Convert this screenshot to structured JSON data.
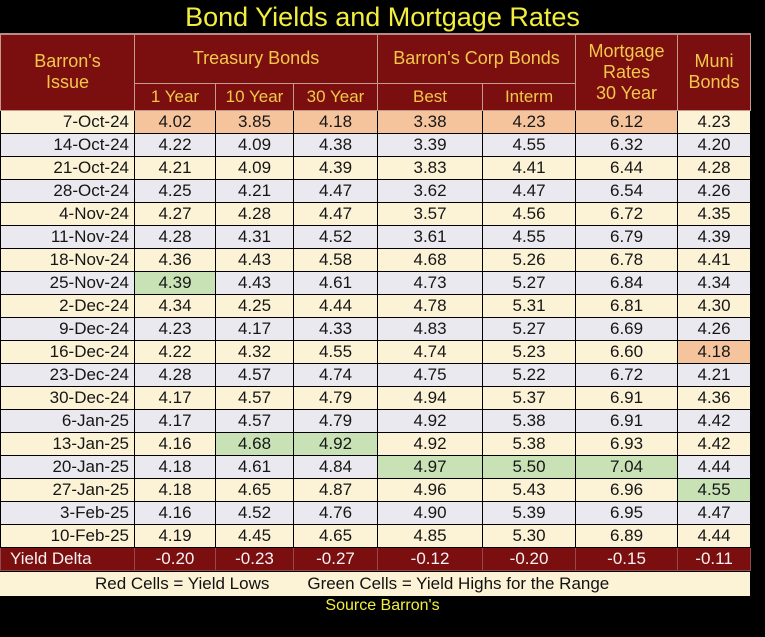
{
  "title": "Bond Yields and Mortgage Rates",
  "header": {
    "issue": "Barron's\nIssue",
    "treasury_group": "Treasury Bonds",
    "corp_group": "Barron's Corp Bonds",
    "mortgage": "Mortgage\nRates\n30 Year",
    "muni": "Muni\nBonds",
    "sub": [
      "1 Year",
      "10 Year",
      "30 Year",
      "Best",
      "Interm"
    ]
  },
  "delta": {
    "label": "Yield Delta"
  },
  "legend": {
    "red": "Red Cells = Yield Lows",
    "green": "Green Cells = Yield Highs for the Range"
  },
  "source": "Source Barron's",
  "colors": {
    "header_bg": "#7b0f10",
    "header_text": "#f3c84a",
    "title_text": "#f1ee3e",
    "row_cream": "#fcf3d6",
    "row_gray": "#e9e9ef",
    "yield_low_cell": "#f5c49d",
    "yield_high_cell": "#c8e2b6",
    "delta_text": "#f7f2f2",
    "page_bg": "#000000"
  },
  "chart_data": {
    "type": "table",
    "title": "Bond Yields and Mortgage Rates",
    "column_groups": [
      {
        "label": "Treasury Bonds",
        "span": 3
      },
      {
        "label": "Barron's Corp Bonds",
        "span": 2
      }
    ],
    "columns": [
      "Barron's Issue",
      "1 Year",
      "10 Year",
      "30 Year",
      "Best",
      "Interm",
      "Mortgage Rates 30 Year",
      "Muni Bonds"
    ],
    "rows": [
      {
        "date": "7-Oct-24",
        "values": [
          "4.02",
          "3.85",
          "4.18",
          "3.38",
          "4.23",
          "6.12",
          "4.23"
        ],
        "hl": {
          "0": "low",
          "1": "low",
          "2": "low",
          "3": "low",
          "4": "low",
          "5": "low"
        }
      },
      {
        "date": "14-Oct-24",
        "values": [
          "4.22",
          "4.09",
          "4.38",
          "3.39",
          "4.55",
          "6.32",
          "4.20"
        ]
      },
      {
        "date": "21-Oct-24",
        "values": [
          "4.21",
          "4.09",
          "4.39",
          "3.83",
          "4.41",
          "6.44",
          "4.28"
        ]
      },
      {
        "date": "28-Oct-24",
        "values": [
          "4.25",
          "4.21",
          "4.47",
          "3.62",
          "4.47",
          "6.54",
          "4.26"
        ]
      },
      {
        "date": "4-Nov-24",
        "values": [
          "4.27",
          "4.28",
          "4.47",
          "3.57",
          "4.56",
          "6.72",
          "4.35"
        ]
      },
      {
        "date": "11-Nov-24",
        "values": [
          "4.28",
          "4.31",
          "4.52",
          "3.61",
          "4.55",
          "6.79",
          "4.39"
        ]
      },
      {
        "date": "18-Nov-24",
        "values": [
          "4.36",
          "4.43",
          "4.58",
          "4.68",
          "5.26",
          "6.78",
          "4.41"
        ]
      },
      {
        "date": "25-Nov-24",
        "values": [
          "4.39",
          "4.43",
          "4.61",
          "4.73",
          "5.27",
          "6.84",
          "4.34"
        ],
        "hl": {
          "0": "high"
        }
      },
      {
        "date": "2-Dec-24",
        "values": [
          "4.34",
          "4.25",
          "4.44",
          "4.78",
          "5.31",
          "6.81",
          "4.30"
        ]
      },
      {
        "date": "9-Dec-24",
        "values": [
          "4.23",
          "4.17",
          "4.33",
          "4.83",
          "5.27",
          "6.69",
          "4.26"
        ]
      },
      {
        "date": "16-Dec-24",
        "values": [
          "4.22",
          "4.32",
          "4.55",
          "4.74",
          "5.23",
          "6.60",
          "4.18"
        ],
        "hl": {
          "6": "low"
        }
      },
      {
        "date": "23-Dec-24",
        "values": [
          "4.28",
          "4.57",
          "4.74",
          "4.75",
          "5.22",
          "6.72",
          "4.21"
        ]
      },
      {
        "date": "30-Dec-24",
        "values": [
          "4.17",
          "4.57",
          "4.79",
          "4.94",
          "5.37",
          "6.91",
          "4.36"
        ]
      },
      {
        "date": "6-Jan-25",
        "values": [
          "4.17",
          "4.57",
          "4.79",
          "4.92",
          "5.38",
          "6.91",
          "4.42"
        ]
      },
      {
        "date": "13-Jan-25",
        "values": [
          "4.16",
          "4.68",
          "4.92",
          "4.92",
          "5.38",
          "6.93",
          "4.42"
        ],
        "hl": {
          "1": "high",
          "2": "high"
        }
      },
      {
        "date": "20-Jan-25",
        "values": [
          "4.18",
          "4.61",
          "4.84",
          "4.97",
          "5.50",
          "7.04",
          "4.44"
        ],
        "hl": {
          "3": "high",
          "4": "high",
          "5": "high"
        }
      },
      {
        "date": "27-Jan-25",
        "values": [
          "4.18",
          "4.65",
          "4.87",
          "4.96",
          "5.43",
          "6.96",
          "4.55"
        ],
        "hl": {
          "6": "high"
        }
      },
      {
        "date": "3-Feb-25",
        "values": [
          "4.16",
          "4.52",
          "4.76",
          "4.90",
          "5.39",
          "6.95",
          "4.47"
        ]
      },
      {
        "date": "10-Feb-25",
        "values": [
          "4.19",
          "4.45",
          "4.65",
          "4.85",
          "5.30",
          "6.89",
          "4.44"
        ]
      }
    ],
    "yield_delta": [
      "-0.20",
      "-0.23",
      "-0.27",
      "-0.12",
      "-0.20",
      "-0.15",
      "-0.11"
    ],
    "notes": [
      "Red Cells = Yield Lows",
      "Green Cells = Yield Highs for the Range",
      "Source Barron's"
    ]
  }
}
